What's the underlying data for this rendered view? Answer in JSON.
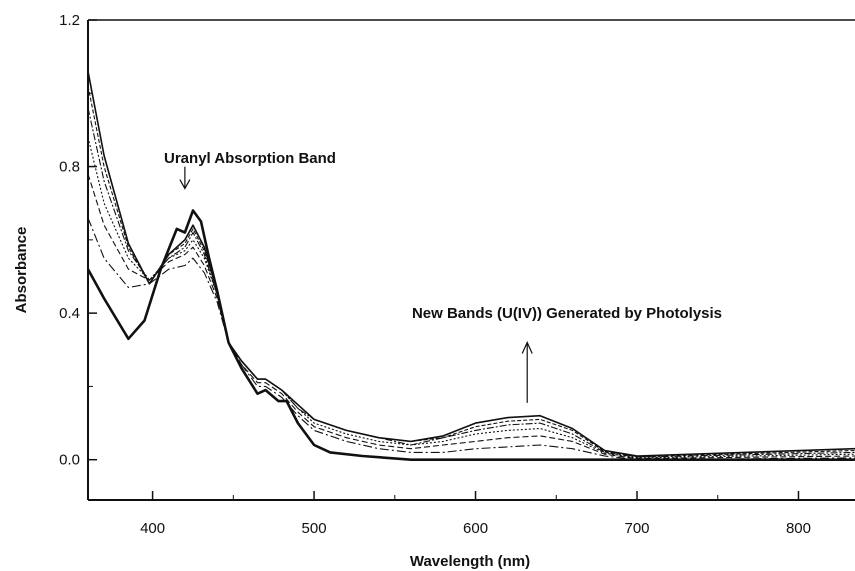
{
  "chart_data": {
    "type": "line",
    "title": "",
    "xlabel": "Wavelength (nm)",
    "ylabel": "Absorbance",
    "xlim": [
      360,
      835
    ],
    "ylim": [
      -0.11,
      1.2
    ],
    "x_ticks": [
      400,
      500,
      600,
      700,
      800
    ],
    "y_ticks": [
      0.0,
      0.4,
      0.8,
      1.2
    ],
    "x_tick_labels": [
      "400",
      "500",
      "600",
      "700",
      "800"
    ],
    "y_tick_labels": [
      "0.0",
      "0.4",
      "0.8",
      "1.2"
    ],
    "grid": false,
    "annotations": [
      {
        "text": "Uranyl Absorption Band",
        "arrow": "down",
        "arrow_x": 420,
        "arrow_from_y": 0.8,
        "arrow_to_y": 0.74
      },
      {
        "text": "New Bands (U(IV)) Generated by Photolysis",
        "arrow": "up",
        "arrow_x": 632,
        "arrow_from_y": 0.155,
        "arrow_to_y": 0.32
      }
    ],
    "series": [
      {
        "values": [
          [
            360,
            0.52
          ],
          [
            370,
            0.44
          ],
          [
            385,
            0.33
          ],
          [
            395,
            0.38
          ],
          [
            405,
            0.52
          ],
          [
            415,
            0.63
          ],
          [
            420,
            0.62
          ],
          [
            425,
            0.68
          ],
          [
            430,
            0.65
          ],
          [
            435,
            0.55
          ],
          [
            440,
            0.46
          ],
          [
            447,
            0.32
          ],
          [
            455,
            0.25
          ],
          [
            465,
            0.18
          ],
          [
            470,
            0.19
          ],
          [
            478,
            0.16
          ],
          [
            483,
            0.16
          ],
          [
            490,
            0.1
          ],
          [
            500,
            0.04
          ],
          [
            510,
            0.02
          ],
          [
            530,
            0.01
          ],
          [
            560,
            0.0
          ],
          [
            600,
            0.0
          ],
          [
            650,
            0.0
          ],
          [
            700,
            0.0
          ],
          [
            835,
            0.0
          ]
        ]
      },
      {
        "values": [
          [
            360,
            0.66
          ],
          [
            370,
            0.55
          ],
          [
            385,
            0.47
          ],
          [
            398,
            0.48
          ],
          [
            410,
            0.52
          ],
          [
            420,
            0.53
          ],
          [
            425,
            0.55
          ],
          [
            432,
            0.51
          ],
          [
            440,
            0.43
          ],
          [
            447,
            0.32
          ],
          [
            455,
            0.26
          ],
          [
            465,
            0.2
          ],
          [
            470,
            0.2
          ],
          [
            480,
            0.17
          ],
          [
            490,
            0.12
          ],
          [
            500,
            0.08
          ],
          [
            520,
            0.05
          ],
          [
            540,
            0.03
          ],
          [
            560,
            0.02
          ],
          [
            580,
            0.02
          ],
          [
            600,
            0.03
          ],
          [
            620,
            0.035
          ],
          [
            640,
            0.04
          ],
          [
            660,
            0.03
          ],
          [
            680,
            0.01
          ],
          [
            700,
            0.0
          ],
          [
            835,
            0.005
          ]
        ]
      },
      {
        "values": [
          [
            360,
            0.78
          ],
          [
            370,
            0.64
          ],
          [
            385,
            0.52
          ],
          [
            398,
            0.49
          ],
          [
            410,
            0.54
          ],
          [
            420,
            0.56
          ],
          [
            425,
            0.58
          ],
          [
            432,
            0.53
          ],
          [
            440,
            0.44
          ],
          [
            447,
            0.32
          ],
          [
            455,
            0.26
          ],
          [
            465,
            0.21
          ],
          [
            470,
            0.21
          ],
          [
            480,
            0.18
          ],
          [
            490,
            0.13
          ],
          [
            500,
            0.09
          ],
          [
            520,
            0.06
          ],
          [
            540,
            0.04
          ],
          [
            560,
            0.03
          ],
          [
            580,
            0.04
          ],
          [
            600,
            0.05
          ],
          [
            620,
            0.06
          ],
          [
            640,
            0.065
          ],
          [
            660,
            0.05
          ],
          [
            680,
            0.015
          ],
          [
            700,
            0.003
          ],
          [
            835,
            0.01
          ]
        ]
      },
      {
        "values": [
          [
            360,
            0.88
          ],
          [
            370,
            0.7
          ],
          [
            385,
            0.55
          ],
          [
            398,
            0.49
          ],
          [
            410,
            0.55
          ],
          [
            420,
            0.57
          ],
          [
            425,
            0.6
          ],
          [
            432,
            0.55
          ],
          [
            440,
            0.45
          ],
          [
            447,
            0.32
          ],
          [
            455,
            0.27
          ],
          [
            465,
            0.22
          ],
          [
            470,
            0.22
          ],
          [
            480,
            0.19
          ],
          [
            490,
            0.14
          ],
          [
            500,
            0.1
          ],
          [
            520,
            0.07
          ],
          [
            540,
            0.05
          ],
          [
            560,
            0.04
          ],
          [
            580,
            0.05
          ],
          [
            600,
            0.07
          ],
          [
            620,
            0.08
          ],
          [
            640,
            0.085
          ],
          [
            660,
            0.06
          ],
          [
            680,
            0.018
          ],
          [
            700,
            0.005
          ],
          [
            835,
            0.015
          ]
        ]
      },
      {
        "values": [
          [
            360,
            0.96
          ],
          [
            370,
            0.76
          ],
          [
            385,
            0.57
          ],
          [
            398,
            0.49
          ],
          [
            410,
            0.55
          ],
          [
            420,
            0.58
          ],
          [
            425,
            0.62
          ],
          [
            432,
            0.56
          ],
          [
            440,
            0.45
          ],
          [
            447,
            0.32
          ],
          [
            455,
            0.27
          ],
          [
            465,
            0.22
          ],
          [
            470,
            0.22
          ],
          [
            480,
            0.19
          ],
          [
            490,
            0.14
          ],
          [
            500,
            0.11
          ],
          [
            520,
            0.08
          ],
          [
            540,
            0.06
          ],
          [
            560,
            0.04
          ],
          [
            580,
            0.06
          ],
          [
            600,
            0.08
          ],
          [
            620,
            0.095
          ],
          [
            640,
            0.1
          ],
          [
            660,
            0.07
          ],
          [
            680,
            0.02
          ],
          [
            700,
            0.007
          ],
          [
            835,
            0.02
          ]
        ]
      },
      {
        "values": [
          [
            360,
            1.02
          ],
          [
            370,
            0.8
          ],
          [
            385,
            0.58
          ],
          [
            398,
            0.48
          ],
          [
            410,
            0.56
          ],
          [
            420,
            0.59
          ],
          [
            425,
            0.63
          ],
          [
            432,
            0.57
          ],
          [
            440,
            0.46
          ],
          [
            447,
            0.32
          ],
          [
            455,
            0.27
          ],
          [
            465,
            0.22
          ],
          [
            470,
            0.22
          ],
          [
            480,
            0.19
          ],
          [
            490,
            0.15
          ],
          [
            500,
            0.11
          ],
          [
            520,
            0.08
          ],
          [
            540,
            0.06
          ],
          [
            560,
            0.05
          ],
          [
            580,
            0.06
          ],
          [
            600,
            0.09
          ],
          [
            620,
            0.105
          ],
          [
            640,
            0.11
          ],
          [
            660,
            0.08
          ],
          [
            680,
            0.022
          ],
          [
            700,
            0.008
          ],
          [
            835,
            0.025
          ]
        ]
      },
      {
        "values": [
          [
            360,
            1.06
          ],
          [
            370,
            0.83
          ],
          [
            385,
            0.59
          ],
          [
            398,
            0.48
          ],
          [
            410,
            0.56
          ],
          [
            420,
            0.6
          ],
          [
            425,
            0.64
          ],
          [
            432,
            0.58
          ],
          [
            440,
            0.46
          ],
          [
            447,
            0.32
          ],
          [
            455,
            0.27
          ],
          [
            465,
            0.22
          ],
          [
            470,
            0.22
          ],
          [
            480,
            0.19
          ],
          [
            490,
            0.15
          ],
          [
            500,
            0.11
          ],
          [
            520,
            0.08
          ],
          [
            540,
            0.06
          ],
          [
            560,
            0.05
          ],
          [
            580,
            0.065
          ],
          [
            600,
            0.1
          ],
          [
            620,
            0.115
          ],
          [
            640,
            0.12
          ],
          [
            660,
            0.085
          ],
          [
            680,
            0.025
          ],
          [
            700,
            0.01
          ],
          [
            835,
            0.03
          ]
        ]
      }
    ]
  }
}
